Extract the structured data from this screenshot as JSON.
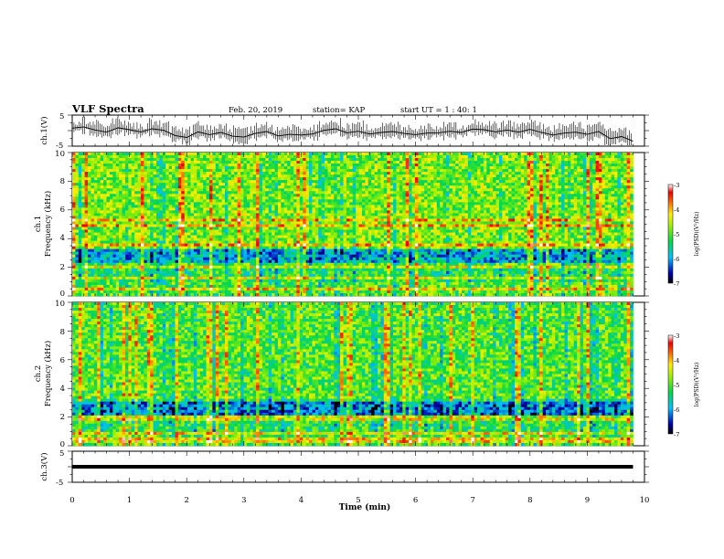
{
  "header": {
    "title": "VLF Spectra",
    "date": "Feb. 20, 2019",
    "station": "station= KAP",
    "start_ut": "start  UT =   1 : 40: 1"
  },
  "chart_data": [
    {
      "type": "line",
      "ylabel": "ch.1(V)",
      "ylim": [
        -5,
        5
      ],
      "yticks": [
        "5",
        "-5"
      ],
      "x": [
        0,
        0.2,
        0.4,
        0.6,
        0.8,
        1,
        1.2,
        1.4,
        1.6,
        1.8,
        2,
        2.2,
        2.4,
        2.6,
        2.8,
        3,
        3.2,
        3.4,
        3.6,
        3.8,
        4,
        4.2,
        4.4,
        4.6,
        4.8,
        5,
        5.2,
        5.4,
        5.6,
        5.8,
        6,
        6.2,
        6.4,
        6.6,
        6.8,
        7,
        7.2,
        7.4,
        7.6,
        7.8,
        8,
        8.2,
        8.4,
        8.6,
        8.8,
        9,
        9.2,
        9.4,
        9.6,
        9.8
      ],
      "y": [
        0.8,
        1.2,
        0.2,
        -0.5,
        0.9,
        0.3,
        -0.4,
        0.6,
        0.1,
        -1.6,
        -2.2,
        -0.4,
        -1.3,
        -0.6,
        -1.8,
        -2.1,
        -0.9,
        -0.3,
        -1.7,
        -1.2,
        -1.4,
        -1.1,
        0.1,
        0.6,
        -0.7,
        -0.2,
        -1.1,
        -0.6,
        -0.3,
        -0.9,
        -1.3,
        -0.8,
        -0.7,
        -0.2,
        -0.6,
        0.5,
        0.3,
        -0.4,
        0.2,
        -0.5,
        0.4,
        -0.6,
        -1.4,
        -0.8,
        -0.5,
        -1.2,
        -0.3,
        -2.6,
        -1.9,
        -3.4
      ]
    },
    {
      "type": "heatmap",
      "ylabel": "ch.1\nFrequency (kHz)",
      "ylim": [
        0,
        10
      ],
      "yticks": [
        "0",
        "2",
        "4",
        "6",
        "8",
        "10"
      ],
      "colorbar": {
        "label": "log(PSD)(V²/Hz)",
        "range": [
          -7,
          -3
        ],
        "ticks": [
          "-3",
          "-4",
          "-5",
          "-6",
          "-7"
        ]
      }
    },
    {
      "type": "heatmap",
      "ylabel": "ch.2\nFrequency (kHz)",
      "ylim": [
        0,
        10
      ],
      "yticks": [
        "0",
        "2",
        "4",
        "6",
        "8",
        "10"
      ],
      "colorbar": {
        "label": "log(PSD)(V²/Hz)",
        "range": [
          -7,
          -3
        ],
        "ticks": [
          "-3",
          "-4",
          "-5",
          "-6",
          "-7"
        ]
      }
    },
    {
      "type": "line",
      "ylabel": "ch.3(V)",
      "ylim": [
        -5,
        5
      ],
      "yticks": [
        "5",
        "-5"
      ],
      "x": [
        0,
        9.8
      ],
      "y": [
        0,
        0
      ]
    }
  ],
  "xaxis": {
    "label": "Time (min)",
    "range": [
      0,
      10
    ],
    "ticks": [
      "0",
      "1",
      "2",
      "3",
      "4",
      "5",
      "6",
      "7",
      "8",
      "9",
      "10"
    ]
  }
}
